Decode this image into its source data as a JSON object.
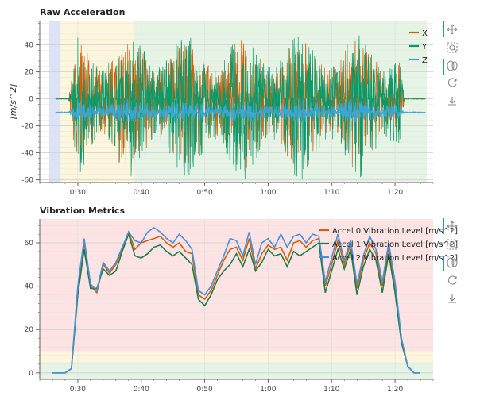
{
  "chart_data": [
    {
      "type": "line",
      "title": "Raw Acceleration",
      "ylabel": "[m/s^2]",
      "xlabel": "",
      "xlim": [
        24,
        86
      ],
      "ylim": [
        -62,
        58
      ],
      "x_ticks": [
        {
          "value": 30,
          "label": "0:30"
        },
        {
          "value": 40,
          "label": "0:40"
        },
        {
          "value": 50,
          "label": "0:50"
        },
        {
          "value": 60,
          "label": "1:00"
        },
        {
          "value": 70,
          "label": "1:10"
        },
        {
          "value": 80,
          "label": "1:20"
        }
      ],
      "y_ticks": [
        40,
        20,
        0,
        -20,
        -40,
        -60
      ],
      "grid": true,
      "legend_position": "top-right",
      "background_bands": [
        {
          "x0": 25.5,
          "x1": 27.3,
          "color": "#dce3f9"
        },
        {
          "x0": 27.3,
          "x1": 38.8,
          "color": "#fdf6dc"
        },
        {
          "x0": 38.8,
          "x1": 85.0,
          "color": "#e5f4e5"
        }
      ],
      "series": [
        {
          "name": "X",
          "color": "#d35f0a",
          "baseline": 0,
          "signal_start": 28.5,
          "signal_end": 81.5,
          "amplitude_range": [
            -55,
            45
          ]
        },
        {
          "name": "Y",
          "color": "#079a6b",
          "baseline": 0,
          "signal_start": 28.5,
          "signal_end": 81.5,
          "amplitude_range": [
            -60,
            48
          ]
        },
        {
          "name": "Z",
          "color": "#3ba7d5",
          "baseline": -10,
          "signal_start": 28.5,
          "signal_end": 81.5,
          "amplitude_range": [
            -18,
            0
          ]
        }
      ]
    },
    {
      "type": "line",
      "title": "Vibration Metrics",
      "ylabel": "",
      "xlabel": "",
      "xlim": [
        24,
        86
      ],
      "ylim": [
        -3,
        71
      ],
      "x_ticks": [
        {
          "value": 30,
          "label": "0:30"
        },
        {
          "value": 40,
          "label": "0:40"
        },
        {
          "value": 50,
          "label": "0:50"
        },
        {
          "value": 60,
          "label": "1:00"
        },
        {
          "value": 70,
          "label": "1:10"
        },
        {
          "value": 80,
          "label": "1:20"
        }
      ],
      "y_ticks": [
        60,
        40,
        20,
        0
      ],
      "grid": true,
      "legend_position": "top-right",
      "background_bands": [
        {
          "y0": -3,
          "y1": 5,
          "color": "#e5f4e5"
        },
        {
          "y0": 5,
          "y1": 10,
          "color": "#fdf6dc"
        },
        {
          "y0": 10,
          "y1": 71,
          "color": "#fde3e3"
        }
      ],
      "x": [
        26,
        27,
        28,
        29,
        30,
        31,
        32,
        33,
        34,
        35,
        36,
        37,
        38,
        39,
        40,
        41,
        42,
        43,
        44,
        45,
        46,
        47,
        48,
        49,
        50,
        51,
        52,
        53,
        54,
        55,
        56,
        57,
        58,
        59,
        60,
        61,
        62,
        63,
        64,
        65,
        66,
        67,
        68,
        69,
        70,
        71,
        72,
        73,
        74,
        75,
        76,
        77,
        78,
        79,
        80,
        81,
        82,
        83,
        84
      ],
      "series": [
        {
          "name": "Accel 0 Vibration Level [m/s^2]",
          "color": "#d35f0a",
          "values": [
            0,
            0,
            0,
            2,
            38,
            60,
            40,
            37,
            50,
            46,
            50,
            57,
            65,
            57,
            60,
            61,
            62,
            63,
            60,
            58,
            60,
            56,
            55,
            36,
            34,
            38,
            45,
            52,
            57,
            58,
            52,
            62,
            48,
            55,
            59,
            57,
            58,
            52,
            60,
            61,
            58,
            61,
            62,
            40,
            50,
            61,
            50,
            60,
            39,
            52,
            60,
            55,
            40,
            58,
            40,
            15,
            3,
            0,
            0
          ]
        },
        {
          "name": "Accel 1 Vibration Level [m/s^2]",
          "color": "#1b7f45",
          "values": [
            0,
            0,
            0,
            2,
            36,
            57,
            39,
            39,
            48,
            45,
            47,
            56,
            64,
            54,
            53,
            55,
            58,
            59,
            56,
            54,
            56,
            53,
            50,
            34,
            31,
            36,
            43,
            47,
            50,
            55,
            49,
            57,
            47,
            51,
            57,
            54,
            55,
            49,
            56,
            54,
            56,
            58,
            60,
            37,
            47,
            57,
            48,
            57,
            36,
            49,
            57,
            52,
            37,
            55,
            37,
            14,
            3,
            0,
            0
          ]
        },
        {
          "name": "Accel 2 Vibration Level [m/s^2]",
          "color": "#4a8fd8",
          "values": [
            0,
            0,
            0,
            2,
            40,
            62,
            41,
            38,
            51,
            47,
            51,
            58,
            65,
            61,
            60,
            65,
            67,
            65,
            62,
            60,
            64,
            61,
            57,
            38,
            36,
            40,
            47,
            54,
            62,
            61,
            54,
            65,
            50,
            60,
            62,
            58,
            64,
            58,
            63,
            64,
            60,
            64,
            63,
            42,
            53,
            64,
            52,
            61,
            41,
            54,
            63,
            57,
            42,
            60,
            42,
            16,
            3,
            0,
            0
          ]
        }
      ]
    }
  ]
}
